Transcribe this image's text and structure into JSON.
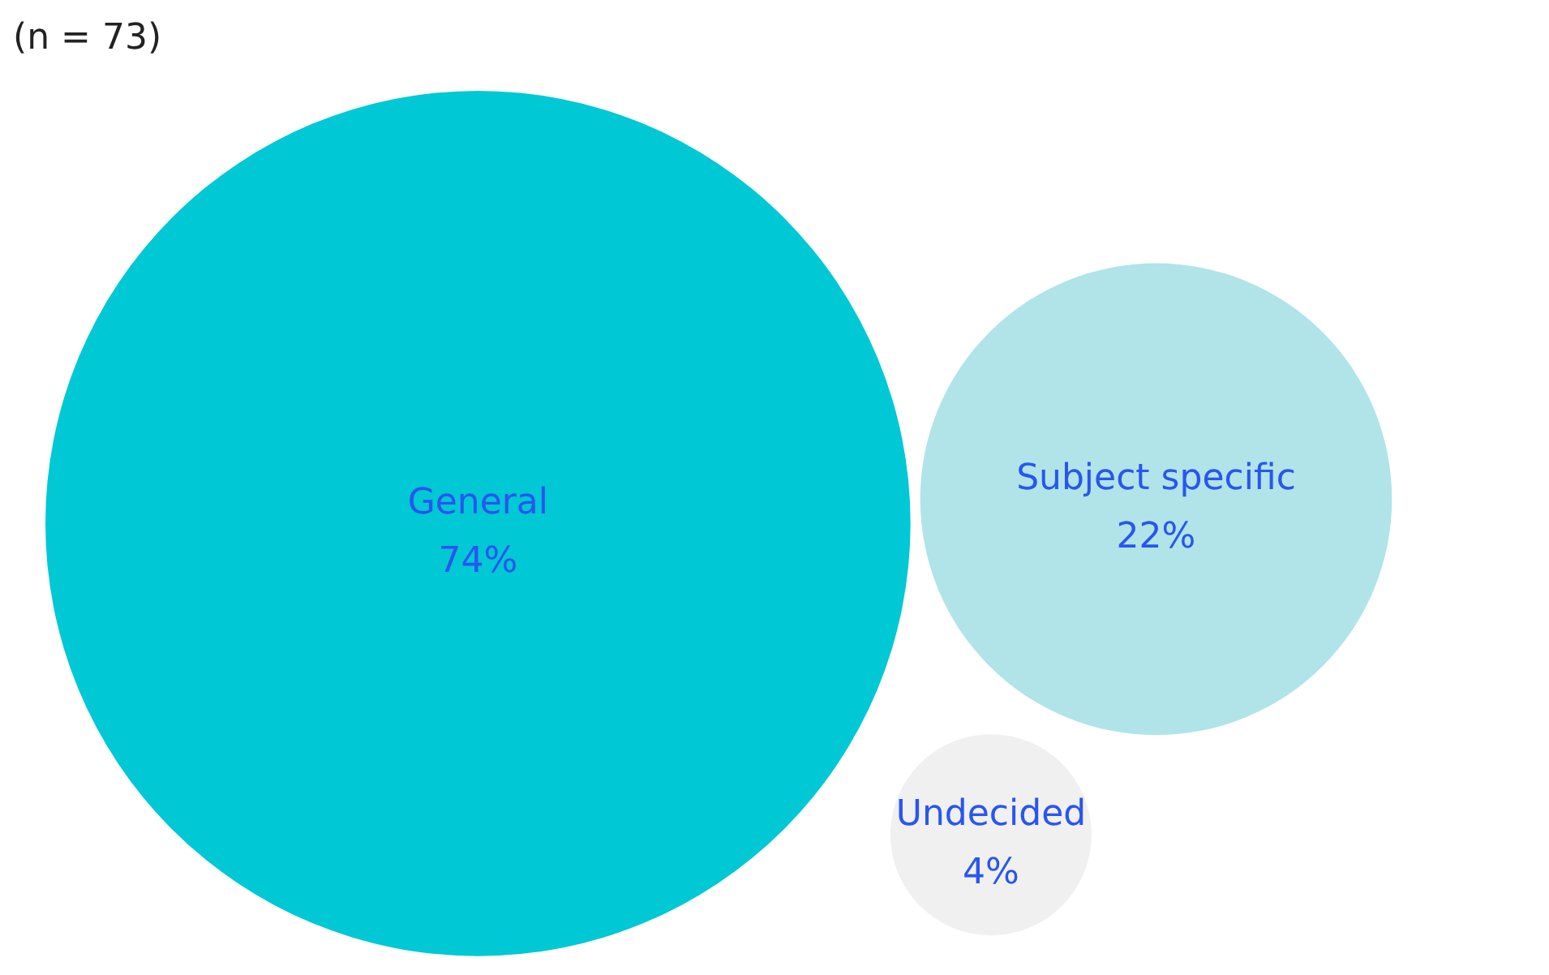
{
  "chart_data": {
    "type": "other",
    "subtitle": "(n = 73)",
    "categories": [
      "General",
      "Subject specific",
      "Undecided"
    ],
    "values": [
      74,
      22,
      4
    ],
    "value_labels": [
      "74%",
      "22%",
      "4%"
    ],
    "colors": [
      "#00c8d4",
      "#b0e4e8",
      "#f0f0f0"
    ],
    "data_labels": true
  }
}
